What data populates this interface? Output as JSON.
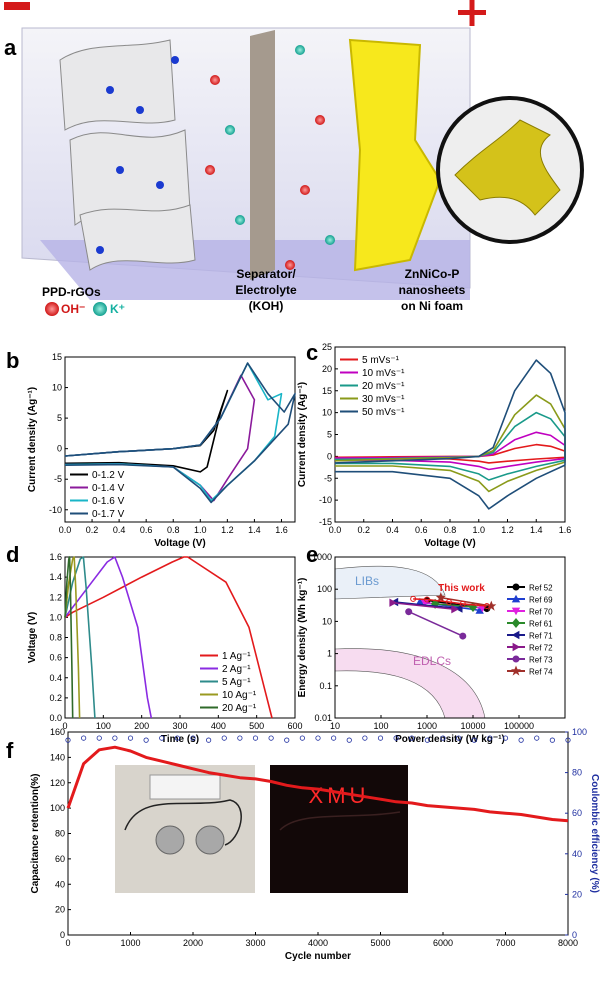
{
  "panel_a": {
    "label": "a",
    "electrode_left": "PPD-rGOs",
    "ion_oh": "OH⁻",
    "ion_k": "K⁺",
    "separator": [
      "Separator/",
      "Electrolyte",
      "(KOH)"
    ],
    "electrode_right": [
      "ZnNiCo-P",
      "nanosheets",
      "on Ni foam"
    ]
  },
  "chart_data": [
    {
      "type": "line",
      "panel": "b",
      "xlabel": "Voltage (V)",
      "ylabel": "Current density (Ag⁻¹)",
      "xlim": [
        0,
        1.7
      ],
      "xticks": [
        {
          "value": 0,
          "label": "0.0"
        },
        0.2,
        0.4,
        0.6,
        0.8,
        {
          "value": 1,
          "label": "1.0"
        },
        1.2,
        1.4,
        1.6
      ],
      "ylim": [
        -12,
        15
      ],
      "yticks": [
        -10,
        -5,
        0,
        5,
        10,
        15
      ],
      "legend": "lower left",
      "series": [
        {
          "name": "0-1.2 V",
          "color": "#000000",
          "x": [
            0,
            0.4,
            0.8,
            1.0,
            1.1,
            1.2,
            1.15,
            1.05,
            1.0,
            0.8,
            0.4,
            0
          ],
          "values": [
            -1.2,
            -0.5,
            0,
            0.5,
            3,
            9.5,
            6,
            -3,
            -3.8,
            -2.8,
            -2.3,
            -2.4
          ]
        },
        {
          "name": "0-1.4 V",
          "color": "#8b1a9b",
          "x": [
            0,
            0.4,
            0.8,
            1.0,
            1.15,
            1.3,
            1.4,
            1.35,
            1.2,
            1.1,
            1.0,
            0.8,
            0.4,
            0
          ],
          "values": [
            -1.2,
            -0.5,
            0,
            0.6,
            5,
            12,
            8,
            0,
            -5,
            -8.5,
            -6,
            -3,
            -2.5,
            -2.6
          ]
        },
        {
          "name": "0-1.6 V",
          "color": "#19b5c7",
          "x": [
            0,
            0.4,
            0.8,
            1.0,
            1.15,
            1.35,
            1.5,
            1.6,
            1.55,
            1.4,
            1.2,
            1.08,
            1.0,
            0.8,
            0.4,
            0
          ],
          "values": [
            -1.2,
            -0.5,
            0,
            0.6,
            5,
            14,
            8,
            9,
            2,
            -2,
            -6,
            -8.5,
            -6,
            -3,
            -2.5,
            -2.6
          ]
        },
        {
          "name": "0-1.7 V",
          "color": "#1f4e79",
          "x": [
            0,
            0.4,
            0.8,
            1.0,
            1.15,
            1.35,
            1.5,
            1.62,
            1.7,
            1.65,
            1.4,
            1.2,
            1.08,
            1.0,
            0.8,
            0.4,
            0
          ],
          "values": [
            -1.2,
            -0.5,
            0,
            0.6,
            5,
            14,
            9,
            6,
            9,
            4,
            -2,
            -6,
            -8.8,
            -6.5,
            -3,
            -2.6,
            -2.7
          ]
        }
      ]
    },
    {
      "type": "line",
      "panel": "c",
      "xlabel": "Voltage (V)",
      "ylabel": "Current density (Ag⁻¹)",
      "xlim": [
        0,
        1.6
      ],
      "xticks": [
        {
          "value": 0,
          "label": "0.0"
        },
        0.2,
        0.4,
        0.6,
        0.8,
        {
          "value": 1,
          "label": "1.0"
        },
        1.2,
        1.4,
        1.6
      ],
      "ylim": [
        -15,
        25
      ],
      "yticks": [
        -15,
        -10,
        -5,
        0,
        5,
        10,
        15,
        20,
        25
      ],
      "legend": "upper left",
      "series": [
        {
          "name": "5 mVs⁻¹",
          "color": "#e31a1c",
          "x": [
            0,
            0.4,
            0.8,
            1.0,
            1.1,
            1.25,
            1.4,
            1.5,
            1.6,
            1.6,
            1.4,
            1.2,
            1.07,
            1.0,
            0.8,
            0.4,
            0
          ],
          "values": [
            -0.2,
            -0.1,
            0,
            0,
            0.3,
            1.8,
            2.7,
            2.3,
            1.2,
            -0.2,
            -0.6,
            -1.1,
            -1.5,
            -1.1,
            -0.6,
            -0.4,
            -0.4
          ]
        },
        {
          "name": "10 mVs⁻¹",
          "color": "#c000c0",
          "x": [
            0,
            0.4,
            0.8,
            1.0,
            1.1,
            1.25,
            1.4,
            1.5,
            1.6,
            1.6,
            1.4,
            1.2,
            1.07,
            1.0,
            0.8,
            0.4,
            0
          ],
          "values": [
            -0.4,
            -0.3,
            -0.1,
            0,
            0.5,
            3.8,
            5.5,
            4.8,
            2.5,
            -0.5,
            -1.3,
            -2.3,
            -3,
            -2.3,
            -1.3,
            -0.9,
            -0.9
          ]
        },
        {
          "name": "20 mVs⁻¹",
          "color": "#1a9a8a",
          "x": [
            0,
            0.4,
            0.8,
            1.0,
            1.1,
            1.25,
            1.4,
            1.5,
            1.6,
            1.6,
            1.4,
            1.2,
            1.07,
            1.0,
            0.8,
            0.4,
            0
          ],
          "values": [
            -0.7,
            -0.5,
            -0.2,
            0,
            0.9,
            6.8,
            10,
            8.6,
            4.5,
            -0.9,
            -2.3,
            -4,
            -5.4,
            -4,
            -2.3,
            -1.6,
            -1.6
          ]
        },
        {
          "name": "30 mVs⁻¹",
          "color": "#8a9a1a",
          "x": [
            0,
            0.4,
            0.8,
            1.0,
            1.1,
            1.25,
            1.4,
            1.5,
            1.6,
            1.6,
            1.4,
            1.2,
            1.07,
            1.0,
            0.8,
            0.4,
            0
          ],
          "values": [
            -1,
            -0.6,
            -0.3,
            0,
            1.3,
            9.5,
            14,
            12,
            6.3,
            -1.3,
            -3.2,
            -5.7,
            -8,
            -5.7,
            -3.2,
            -2.2,
            -2.2
          ]
        },
        {
          "name": "50 mVs⁻¹",
          "color": "#1f4e79",
          "x": [
            0,
            0.4,
            0.8,
            1.0,
            1.1,
            1.25,
            1.4,
            1.5,
            1.6,
            1.6,
            1.4,
            1.2,
            1.07,
            1.0,
            0.8,
            0.4,
            0
          ],
          "values": [
            -1.5,
            -1,
            -0.5,
            0,
            2,
            15,
            22,
            19,
            10,
            -2,
            -5,
            -9,
            -12,
            -9,
            -5,
            -3.5,
            -3.5
          ]
        }
      ]
    },
    {
      "type": "line",
      "panel": "d",
      "xlabel": "Time (s)",
      "ylabel": "Voltage (V)",
      "xlim": [
        0,
        600
      ],
      "xticks": [
        0,
        100,
        200,
        300,
        400,
        500,
        600
      ],
      "ylim": [
        0,
        1.6
      ],
      "yticks": [
        {
          "value": 0,
          "label": "0.0"
        },
        0.2,
        0.4,
        0.6,
        0.8,
        {
          "value": 1,
          "label": "1.0"
        },
        1.2,
        1.4,
        1.6
      ],
      "legend": "lower right",
      "series": [
        {
          "name": "1 Ag⁻¹",
          "color": "#e31a1c",
          "x": [
            0,
            20,
            100,
            200,
            280,
            310,
            320,
            420,
            480,
            520,
            540
          ],
          "values": [
            1.0,
            1.05,
            1.2,
            1.4,
            1.55,
            1.6,
            1.6,
            1.35,
            0.9,
            0.3,
            0
          ]
        },
        {
          "name": "2 Ag⁻¹",
          "color": "#8a2be2",
          "x": [
            0,
            60,
            110,
            130,
            150,
            190,
            215,
            225
          ],
          "values": [
            1.0,
            1.3,
            1.55,
            1.6,
            1.4,
            0.9,
            0.2,
            0
          ]
        },
        {
          "name": "5 Ag⁻¹",
          "color": "#2e8b8b",
          "x": [
            0,
            20,
            40,
            48,
            55,
            70,
            78
          ],
          "values": [
            1.0,
            1.35,
            1.58,
            1.6,
            1.3,
            0.5,
            0
          ]
        },
        {
          "name": "10 Ag⁻¹",
          "color": "#9a9a20",
          "x": [
            0,
            10,
            20,
            24,
            28,
            35,
            38
          ],
          "values": [
            1.0,
            1.35,
            1.58,
            1.6,
            1.3,
            0.5,
            0
          ]
        },
        {
          "name": "20 Ag⁻¹",
          "color": "#2f6a2a",
          "x": [
            0,
            5,
            10,
            12,
            14,
            18,
            20
          ],
          "values": [
            1.0,
            1.35,
            1.58,
            1.6,
            1.3,
            0.5,
            0
          ]
        }
      ]
    },
    {
      "type": "line",
      "panel": "e",
      "xlabel": "Power density (W kg⁻¹)",
      "ylabel": "Energy density (Wh kg⁻¹)",
      "xscale": "log",
      "yscale": "log",
      "xlim": [
        10,
        1000000
      ],
      "xticks": [
        10,
        100,
        1000,
        10000,
        100000
      ],
      "ylim": [
        0.01,
        1000
      ],
      "yticks": [
        0.01,
        0.1,
        1,
        10,
        100,
        1000
      ],
      "legend": "right",
      "annotations": [
        "LIBs",
        "EDLCs"
      ],
      "highlight": {
        "name": "This work",
        "color": "#e31a1c",
        "x": [
          500,
          1000,
          3000,
          6000,
          20000
        ],
        "values": [
          50,
          48,
          40,
          35,
          30
        ]
      },
      "series": [
        {
          "name": "Ref 52",
          "color": "#000000",
          "marker": "circle",
          "x": [
            1000,
            20000
          ],
          "values": [
            45,
            25
          ]
        },
        {
          "name": "Ref 69",
          "color": "#1f3fd0",
          "marker": "triangle",
          "x": [
            700,
            14000
          ],
          "values": [
            40,
            22
          ]
        },
        {
          "name": "Ref 70",
          "color": "#e020e0",
          "marker": "triangle-down",
          "x": [
            900,
            16000
          ],
          "values": [
            38,
            26
          ]
        },
        {
          "name": "Ref 61",
          "color": "#2a8a2a",
          "marker": "diamond",
          "x": [
            1500,
            10000
          ],
          "values": [
            35,
            28
          ]
        },
        {
          "name": "Ref 71",
          "color": "#1a1a8a",
          "marker": "triangle-left",
          "x": [
            200,
            5000
          ],
          "values": [
            40,
            25
          ]
        },
        {
          "name": "Ref 72",
          "color": "#8a1a8a",
          "marker": "triangle-right",
          "x": [
            180,
            4000
          ],
          "values": [
            38,
            24
          ]
        },
        {
          "name": "Ref 73",
          "color": "#7a2a9a",
          "marker": "circle",
          "x": [
            400,
            6000
          ],
          "values": [
            20,
            3.5
          ]
        },
        {
          "name": "Ref 74",
          "color": "#a0302a",
          "marker": "star",
          "x": [
            2000,
            25000
          ],
          "values": [
            55,
            30
          ]
        }
      ]
    },
    {
      "type": "line",
      "panel": "f",
      "xlabel": "Cycle number",
      "ylabel": "Capacitance retention(%)",
      "y2label": "Coulombic efficiency (%)",
      "annotations": [
        "XMU"
      ],
      "xlim": [
        0,
        8000
      ],
      "xticks": [
        0,
        1000,
        2000,
        3000,
        4000,
        5000,
        6000,
        7000,
        8000
      ],
      "ylim": [
        0,
        160
      ],
      "yticks": [
        0,
        20,
        40,
        60,
        80,
        100,
        120,
        140,
        160
      ],
      "y2lim": [
        0,
        100
      ],
      "y2ticks": [
        0,
        20,
        40,
        60,
        80,
        100
      ],
      "x": [
        0,
        250,
        500,
        750,
        1000,
        1250,
        1500,
        1750,
        2000,
        2250,
        2500,
        2750,
        3000,
        3250,
        3500,
        3750,
        4000,
        4250,
        4500,
        4750,
        5000,
        5250,
        5500,
        5750,
        6000,
        6250,
        6500,
        6750,
        7000,
        7250,
        7500,
        7750,
        8000
      ],
      "series": [
        {
          "color": "#e31a1c",
          "values": [
            100,
            135,
            146,
            148,
            145,
            140,
            137,
            134,
            131,
            128,
            126,
            124,
            123,
            121,
            118,
            116,
            115,
            113,
            111,
            109,
            107,
            105,
            104,
            102,
            101,
            100,
            99,
            97,
            96,
            95,
            93,
            91,
            90
          ]
        },
        {
          "color": "#1f2fa0",
          "axis": "y2",
          "marker": "open-circle",
          "values": [
            96,
            97,
            97,
            97,
            97,
            96,
            97,
            97,
            97,
            96,
            97,
            97,
            97,
            97,
            96,
            97,
            97,
            97,
            96,
            97,
            97,
            97,
            97,
            96,
            97,
            97,
            96,
            97,
            97,
            96,
            97,
            96,
            96
          ]
        }
      ]
    }
  ]
}
